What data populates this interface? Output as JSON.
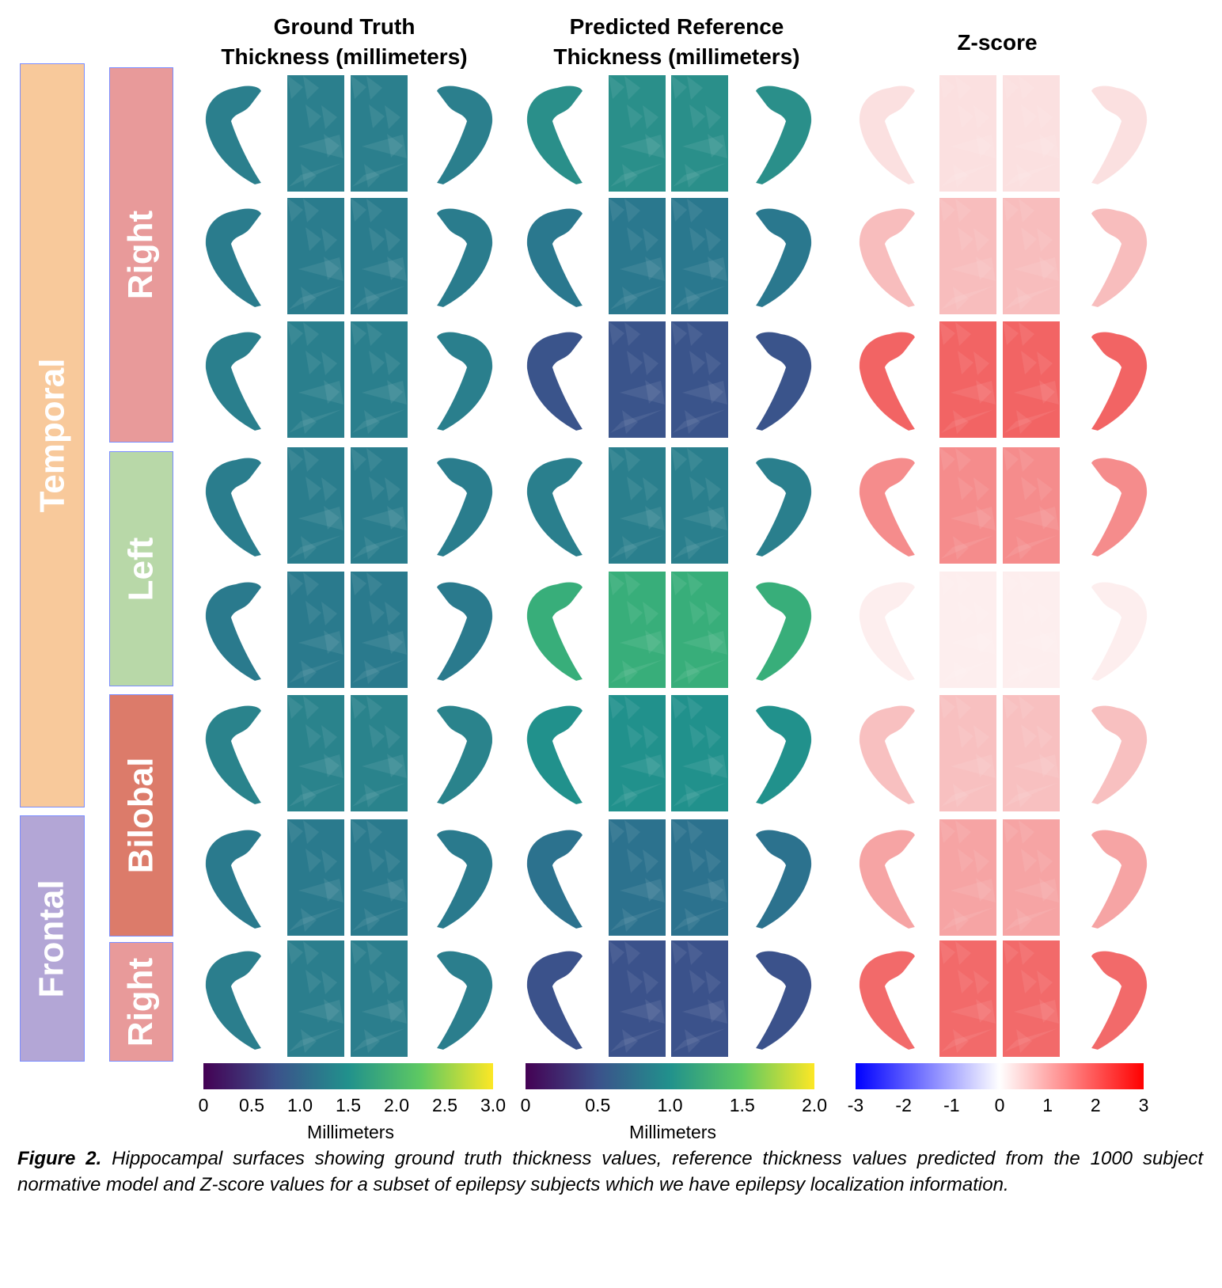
{
  "headers": {
    "ground_truth": [
      "Ground Truth",
      "Thickness (millimeters)"
    ],
    "predicted": [
      "Predicted Reference",
      "Thickness (millimeters)"
    ],
    "zscore": [
      "Z-score"
    ]
  },
  "lobe_labels": [
    {
      "label": "Temporal",
      "color": "#f8c99b"
    },
    {
      "label": "Frontal",
      "color": "#b3a6d6"
    }
  ],
  "side_labels": [
    {
      "label": "Right",
      "color": "#e89a9a"
    },
    {
      "label": "Left",
      "color": "#b8d8a8"
    },
    {
      "label": "Bilobal",
      "color": "#dc7b6a"
    },
    {
      "label": "Right",
      "color": "#e89a9a"
    }
  ],
  "rows": [
    {
      "gt": "#2b7f8d",
      "pred": "#2a8f8a",
      "z": "#fbe0e0"
    },
    {
      "gt": "#2a7c8d",
      "pred": "#2a788e",
      "z": "#f8bdbd"
    },
    {
      "gt": "#2a7f8d",
      "pred": "#3a548b",
      "z": "#f26464"
    },
    {
      "gt": "#2a7d8d",
      "pred": "#2a7f8d",
      "z": "#f58c8c"
    },
    {
      "gt": "#2a7a8d",
      "pred": "#38ae7a",
      "z": "#fdeeee"
    },
    {
      "gt": "#2a838c",
      "pred": "#21918c",
      "z": "#f8c0c0"
    },
    {
      "gt": "#2a7a8d",
      "pred": "#2c728e",
      "z": "#f6a4a4"
    },
    {
      "gt": "#2b7e8d",
      "pred": "#3b528b",
      "z": "#f26a6a"
    }
  ],
  "colorbars": {
    "ground_truth": {
      "ticks": [
        "0",
        "0.5",
        "1.0",
        "1.5",
        "2.0",
        "2.5",
        "3.0"
      ],
      "range": [
        0,
        3.0
      ],
      "label": "Millimeters",
      "colormap": "viridis"
    },
    "predicted": {
      "ticks": [
        "0",
        "0.5",
        "1.0",
        "1.5",
        "2.0"
      ],
      "range": [
        0,
        2.0
      ],
      "label": "Millimeters",
      "colormap": "viridis"
    },
    "zscore": {
      "ticks": [
        "-3",
        "-2",
        "-1",
        "0",
        "1",
        "2",
        "3"
      ],
      "range": [
        -3,
        3
      ],
      "colormap": "bwr"
    }
  },
  "caption": {
    "label": "Figure 2.",
    "text": " Hippocampal surfaces showing ground truth thickness values, reference thickness values predicted from the 1000 subject normative model and Z-score values for a subset of epilepsy subjects which we have epilepsy localization information."
  }
}
